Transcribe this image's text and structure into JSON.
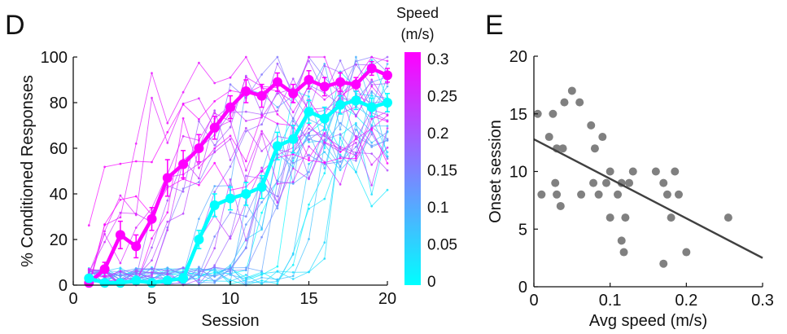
{
  "colors": {
    "fast": "#ff00ff",
    "slow": "#00ffff",
    "points": "#808080",
    "fit": "#404040"
  },
  "chart_data": [
    {
      "panel": "D",
      "type": "line",
      "xlabel": "Session",
      "ylabel": "% Conditioned Responses",
      "xlim": [
        0,
        20
      ],
      "ylim": [
        0,
        100
      ],
      "xticks": [
        0,
        5,
        10,
        15,
        20
      ],
      "yticks": [
        0,
        20,
        40,
        60,
        80,
        100
      ],
      "series": [
        {
          "color": "#ff00ff",
          "x": [
            1,
            2,
            3,
            4,
            5,
            6,
            7,
            8,
            9,
            10,
            11,
            12,
            13,
            14,
            15,
            16,
            17,
            18,
            19,
            20
          ],
          "y": [
            1,
            7,
            22,
            17,
            29,
            47,
            53,
            60,
            69,
            78,
            85,
            83,
            89,
            84,
            90,
            87,
            89,
            88,
            95,
            92
          ],
          "err": [
            1,
            3,
            6,
            5,
            5,
            8,
            6,
            6,
            5,
            5,
            5,
            5,
            4,
            4,
            4,
            4,
            4,
            3,
            3,
            3
          ]
        },
        {
          "color": "#00ffff",
          "x": [
            1,
            2,
            3,
            4,
            5,
            6,
            7,
            8,
            9,
            10,
            11,
            12,
            13,
            14,
            15,
            16,
            17,
            18,
            19,
            20
          ],
          "y": [
            3,
            1,
            1,
            2,
            1,
            2,
            3,
            20,
            35,
            38,
            40,
            43,
            61,
            64,
            76,
            73,
            79,
            81,
            78,
            80
          ],
          "err": [
            1,
            1,
            1,
            1,
            1,
            1,
            2,
            4,
            5,
            5,
            5,
            5,
            6,
            6,
            5,
            5,
            4,
            4,
            4,
            4
          ]
        }
      ],
      "colorbar": {
        "title": "Speed\n(m/s)",
        "ticks": [
          "0.3",
          "0.25",
          "0.2",
          "0.15",
          "0.1",
          "0.05",
          "0"
        ],
        "range": [
          0,
          0.3
        ]
      }
    },
    {
      "panel": "E",
      "type": "scatter",
      "xlabel": "Avg speed (m/s)",
      "ylabel": "Onset session",
      "xlim": [
        0,
        0.3
      ],
      "ylim": [
        0,
        20
      ],
      "xticks": [
        "0",
        "0.1",
        "0.2",
        "0.3"
      ],
      "yticks": [
        "0",
        "5",
        "10",
        "15",
        "20"
      ],
      "points": [
        [
          0.005,
          15
        ],
        [
          0.01,
          8
        ],
        [
          0.025,
          15
        ],
        [
          0.02,
          13
        ],
        [
          0.03,
          12
        ],
        [
          0.028,
          9
        ],
        [
          0.03,
          8
        ],
        [
          0.035,
          7
        ],
        [
          0.04,
          16
        ],
        [
          0.038,
          12
        ],
        [
          0.05,
          17
        ],
        [
          0.06,
          16
        ],
        [
          0.062,
          8
        ],
        [
          0.075,
          14
        ],
        [
          0.078,
          9
        ],
        [
          0.08,
          12
        ],
        [
          0.085,
          8
        ],
        [
          0.09,
          13
        ],
        [
          0.095,
          9
        ],
        [
          0.1,
          10
        ],
        [
          0.1,
          6
        ],
        [
          0.11,
          8
        ],
        [
          0.115,
          9
        ],
        [
          0.115,
          4
        ],
        [
          0.12,
          6
        ],
        [
          0.118,
          3
        ],
        [
          0.125,
          9
        ],
        [
          0.13,
          10
        ],
        [
          0.16,
          10
        ],
        [
          0.17,
          9
        ],
        [
          0.175,
          8
        ],
        [
          0.17,
          2
        ],
        [
          0.18,
          6
        ],
        [
          0.185,
          10
        ],
        [
          0.19,
          8
        ],
        [
          0.2,
          3
        ],
        [
          0.255,
          6
        ]
      ],
      "fit": {
        "x": [
          0,
          0.3
        ],
        "y": [
          12.8,
          2.5
        ]
      }
    }
  ],
  "labels": {
    "panel_d": "D",
    "panel_e": "E"
  }
}
